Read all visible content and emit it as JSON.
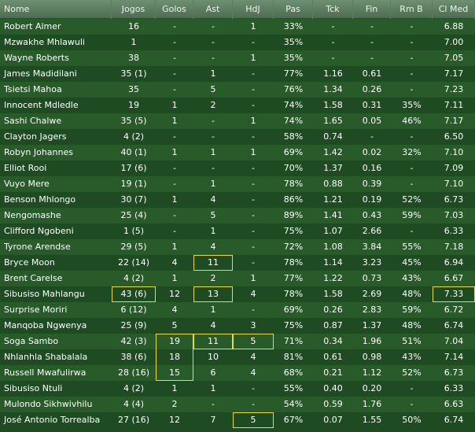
{
  "columns": [
    "Nome",
    "Jogos",
    "Golos",
    "Ast",
    "HdJ",
    "Pas",
    "Tck",
    "Fin",
    "Rm B",
    "Cl Med"
  ],
  "rows": [
    {
      "name": "Robert Almer",
      "jogos": "16",
      "golos": "-",
      "ast": "-",
      "hdj": "1",
      "pas": "33%",
      "tck": "-",
      "fin": "-",
      "rmb": "-",
      "clmed": "6.88"
    },
    {
      "name": "Mzwakhe Mhlawuli",
      "jogos": "1",
      "golos": "-",
      "ast": "-",
      "hdj": "-",
      "pas": "35%",
      "tck": "-",
      "fin": "-",
      "rmb": "-",
      "clmed": "7.00"
    },
    {
      "name": "Wayne Roberts",
      "jogos": "38",
      "golos": "-",
      "ast": "-",
      "hdj": "1",
      "pas": "35%",
      "tck": "-",
      "fin": "-",
      "rmb": "-",
      "clmed": "7.05"
    },
    {
      "name": "James Madidilani",
      "jogos": "35 (1)",
      "golos": "-",
      "ast": "1",
      "hdj": "-",
      "pas": "77%",
      "tck": "1.16",
      "fin": "0.61",
      "rmb": "-",
      "clmed": "7.17"
    },
    {
      "name": "Tsietsi Mahoa",
      "jogos": "35",
      "golos": "-",
      "ast": "5",
      "hdj": "-",
      "pas": "76%",
      "tck": "1.34",
      "fin": "0.26",
      "rmb": "-",
      "clmed": "7.23"
    },
    {
      "name": "Innocent Mdledle",
      "jogos": "19",
      "golos": "1",
      "ast": "2",
      "hdj": "-",
      "pas": "74%",
      "tck": "1.58",
      "fin": "0.31",
      "rmb": "35%",
      "clmed": "7.11"
    },
    {
      "name": "Sashi Chalwe",
      "jogos": "35 (5)",
      "golos": "1",
      "ast": "-",
      "hdj": "1",
      "pas": "74%",
      "tck": "1.65",
      "fin": "0.05",
      "rmb": "46%",
      "clmed": "7.17"
    },
    {
      "name": "Clayton Jagers",
      "jogos": "4 (2)",
      "golos": "-",
      "ast": "-",
      "hdj": "-",
      "pas": "58%",
      "tck": "0.74",
      "fin": "-",
      "rmb": "-",
      "clmed": "6.50"
    },
    {
      "name": "Robyn Johannes",
      "jogos": "40 (1)",
      "golos": "1",
      "ast": "1",
      "hdj": "1",
      "pas": "69%",
      "tck": "1.42",
      "fin": "0.02",
      "rmb": "32%",
      "clmed": "7.10"
    },
    {
      "name": "Elliot Rooi",
      "jogos": "17 (6)",
      "golos": "-",
      "ast": "-",
      "hdj": "-",
      "pas": "70%",
      "tck": "1.37",
      "fin": "0.16",
      "rmb": "-",
      "clmed": "7.09"
    },
    {
      "name": "Vuyo Mere",
      "jogos": "19 (1)",
      "golos": "-",
      "ast": "1",
      "hdj": "-",
      "pas": "78%",
      "tck": "0.88",
      "fin": "0.39",
      "rmb": "-",
      "clmed": "7.10"
    },
    {
      "name": "Benson Mhlongo",
      "jogos": "30 (7)",
      "golos": "1",
      "ast": "4",
      "hdj": "-",
      "pas": "86%",
      "tck": "1.21",
      "fin": "0.19",
      "rmb": "52%",
      "clmed": "6.73"
    },
    {
      "name": "Nengomashe",
      "jogos": "25 (4)",
      "golos": "-",
      "ast": "5",
      "hdj": "-",
      "pas": "89%",
      "tck": "1.41",
      "fin": "0.43",
      "rmb": "59%",
      "clmed": "7.03"
    },
    {
      "name": "Clifford Ngobeni",
      "jogos": "1 (5)",
      "golos": "-",
      "ast": "1",
      "hdj": "-",
      "pas": "75%",
      "tck": "1.07",
      "fin": "2.66",
      "rmb": "-",
      "clmed": "6.33"
    },
    {
      "name": "Tyrone Arendse",
      "jogos": "29 (5)",
      "golos": "1",
      "ast": "4",
      "hdj": "-",
      "pas": "72%",
      "tck": "1.08",
      "fin": "3.84",
      "rmb": "55%",
      "clmed": "7.18"
    },
    {
      "name": "Bryce Moon",
      "jogos": "22 (14)",
      "golos": "4",
      "ast": "11",
      "hdj": "-",
      "pas": "78%",
      "tck": "1.14",
      "fin": "3.23",
      "rmb": "45%",
      "clmed": "6.94"
    },
    {
      "name": "Brent Carelse",
      "jogos": "4 (2)",
      "golos": "1",
      "ast": "2",
      "hdj": "1",
      "pas": "77%",
      "tck": "1.22",
      "fin": "0.73",
      "rmb": "43%",
      "clmed": "6.67"
    },
    {
      "name": "Sibusiso Mahlangu",
      "jogos": "43 (6)",
      "golos": "12",
      "ast": "13",
      "hdj": "4",
      "pas": "78%",
      "tck": "1.58",
      "fin": "2.69",
      "rmb": "48%",
      "clmed": "7.33"
    },
    {
      "name": "Surprise Moriri",
      "jogos": "6 (12)",
      "golos": "4",
      "ast": "1",
      "hdj": "-",
      "pas": "69%",
      "tck": "0.26",
      "fin": "2.83",
      "rmb": "59%",
      "clmed": "6.72"
    },
    {
      "name": "Manqoba Ngwenya",
      "jogos": "25 (9)",
      "golos": "5",
      "ast": "4",
      "hdj": "3",
      "pas": "75%",
      "tck": "0.87",
      "fin": "1.37",
      "rmb": "48%",
      "clmed": "6.74"
    },
    {
      "name": "Soga Sambo",
      "jogos": "42 (3)",
      "golos": "19",
      "ast": "11",
      "hdj": "5",
      "pas": "71%",
      "tck": "0.34",
      "fin": "1.96",
      "rmb": "51%",
      "clmed": "7.04"
    },
    {
      "name": "Nhlanhla Shabalala",
      "jogos": "38 (6)",
      "golos": "18",
      "ast": "10",
      "hdj": "4",
      "pas": "81%",
      "tck": "0.61",
      "fin": "0.98",
      "rmb": "43%",
      "clmed": "7.14"
    },
    {
      "name": "Russell Mwafulirwa",
      "jogos": "28 (16)",
      "golos": "15",
      "ast": "6",
      "hdj": "4",
      "pas": "68%",
      "tck": "0.21",
      "fin": "1.12",
      "rmb": "52%",
      "clmed": "6.73"
    },
    {
      "name": "Sibusiso Ntuli",
      "jogos": "4 (2)",
      "golos": "1",
      "ast": "1",
      "hdj": "-",
      "pas": "55%",
      "tck": "0.40",
      "fin": "0.20",
      "rmb": "-",
      "clmed": "6.33"
    },
    {
      "name": "Mulondo Sikhwivhilu",
      "jogos": "4 (4)",
      "golos": "2",
      "ast": "-",
      "hdj": "-",
      "pas": "54%",
      "tck": "0.59",
      "fin": "1.76",
      "rmb": "-",
      "clmed": "6.63"
    },
    {
      "name": "José Antonio Torrealba",
      "jogos": "27 (16)",
      "golos": "12",
      "ast": "7",
      "hdj": "5",
      "pas": "67%",
      "tck": "0.07",
      "fin": "1.55",
      "rmb": "50%",
      "clmed": "6.74"
    }
  ],
  "highlight_color": "#e8d84a",
  "highlights": [
    {
      "row": 15,
      "col": "ast"
    },
    {
      "row": 17,
      "col": "jogos"
    },
    {
      "row": 17,
      "col": "ast"
    },
    {
      "row": 17,
      "col": "clmed"
    },
    {
      "row": 20,
      "col": "golos"
    },
    {
      "row": 21,
      "col": "golos"
    },
    {
      "row": 22,
      "col": "golos"
    },
    {
      "row": 20,
      "col": "ast"
    },
    {
      "row": 20,
      "col": "hdj"
    },
    {
      "row": 25,
      "col": "hdj"
    }
  ]
}
